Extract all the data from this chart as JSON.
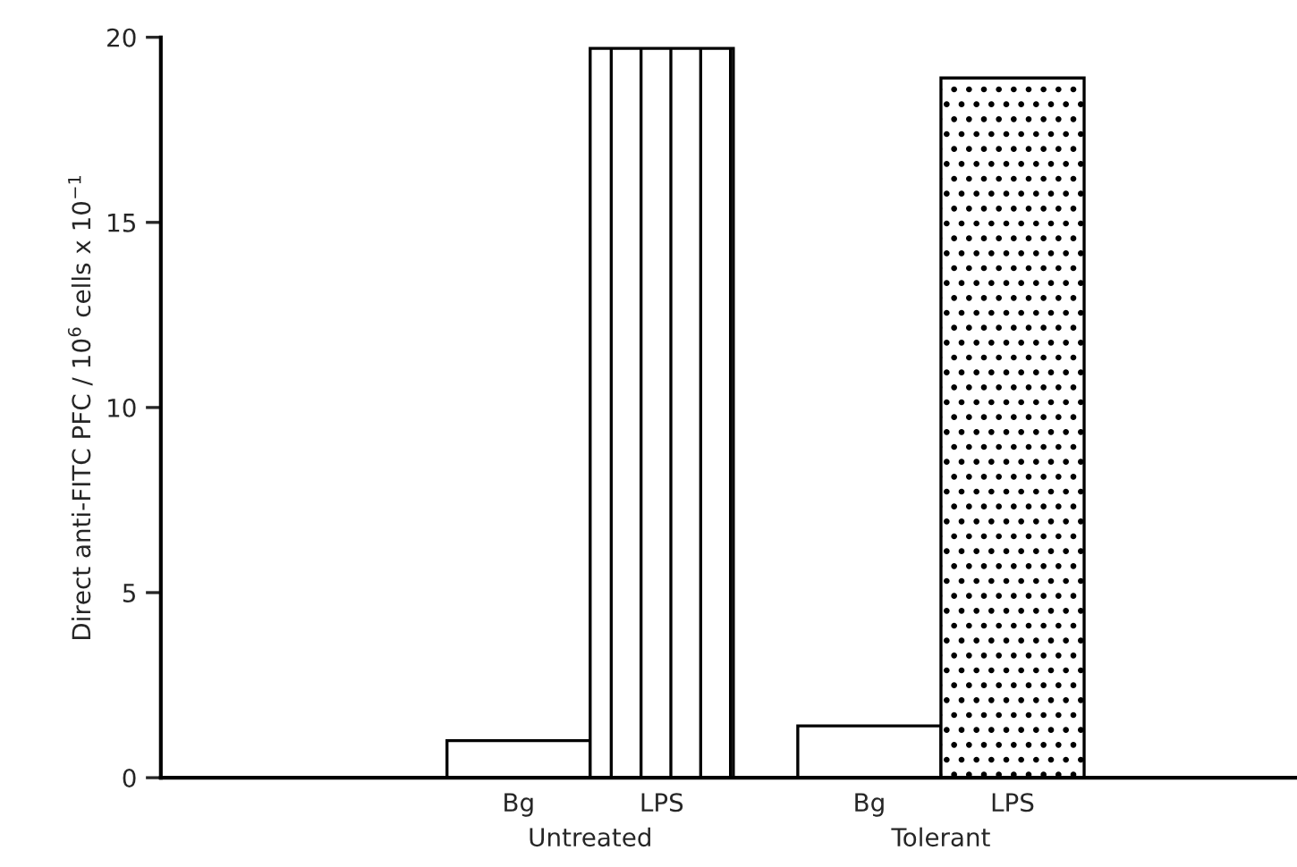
{
  "chart_data": {
    "type": "bar",
    "ylabel": "Direct anti-FITC PFC / 10$^{6}$ cells x 10$^{−1}$",
    "categories": [
      "Untreated",
      "Tolerant"
    ],
    "series": [
      {
        "name": "Bg",
        "color": "#ffffff",
        "values": [
          1.0,
          1.4
        ]
      },
      {
        "name": "LPS",
        "color": "#000000",
        "values": [
          19.7,
          18.9
        ]
      }
    ],
    "ylim": [
      0,
      20
    ],
    "yticks": [
      0,
      5,
      10,
      15,
      20
    ],
    "grid": false,
    "legend": false
  }
}
